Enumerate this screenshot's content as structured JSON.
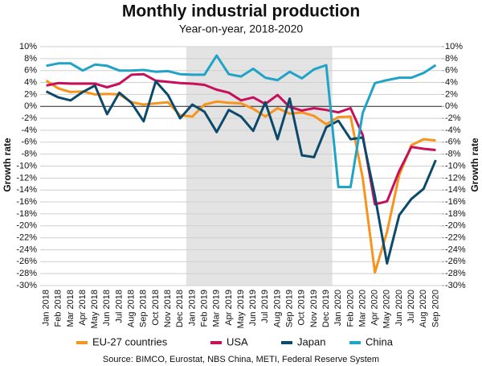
{
  "chart_data": {
    "type": "line",
    "title": "Monthly industrial production",
    "subtitle": "Year-on-year, 2018-2020",
    "y_label": "Growth rate",
    "y2_label": "Growth rate",
    "source": "Source: BIMCO, Eurostat, NBS China, METI, Federal Reserve System",
    "highlight": {
      "from": "Jan 2019",
      "to": "Dec 2019"
    },
    "categories": [
      "Jan 2018",
      "Feb 2018",
      "Mar 2018",
      "Apr 2018",
      "May 2018",
      "Jun 2018",
      "Jul 2018",
      "Aug 2018",
      "Sep 2018",
      "Oct 2018",
      "Nov 2018",
      "Dec 2018",
      "Jan 2019",
      "Feb 2019",
      "Mar 2019",
      "Apr 2019",
      "May 2019",
      "Jun 2019",
      "Jul 2019",
      "Aug 2019",
      "Sep 2019",
      "Oct 2019",
      "Nov 2019",
      "Dec 2019",
      "Jan 2020",
      "Feb 2020",
      "Mar 2020",
      "Apr 2020",
      "May 2020",
      "Jun 2020",
      "Jul 2020",
      "Aug 2020",
      "Sep 2020"
    ],
    "series": [
      {
        "name": "EU-27 countries",
        "color": "#f7941d",
        "values": [
          4.3,
          3.0,
          2.4,
          2.5,
          2.0,
          2.1,
          2.0,
          0.7,
          0.3,
          0.5,
          0.7,
          -1.5,
          -1.7,
          0.3,
          0.8,
          0.6,
          0.5,
          -0.4,
          -1.7,
          -0.3,
          -1.2,
          -1.0,
          -1.6,
          -3.0,
          -1.8,
          -1.7,
          -12,
          -27.8,
          -21,
          -11.5,
          -6.5,
          -5.5,
          -5.7
        ]
      },
      {
        "name": "USA",
        "color": "#c8105a",
        "values": [
          3.5,
          3.9,
          3.8,
          3.8,
          3.8,
          3.2,
          3.8,
          5.3,
          5.4,
          4.3,
          4.1,
          3.9,
          3.8,
          3.6,
          2.8,
          2.3,
          1.0,
          1.5,
          0.4,
          1.9,
          -0.1,
          -0.7,
          -0.3,
          -0.6,
          -1.0,
          -0.3,
          -4.8,
          -16.4,
          -15.9,
          -10.8,
          -6.8,
          -7.1,
          -7.3
        ]
      },
      {
        "name": "Japan",
        "color": "#0b4a6b",
        "values": [
          2.5,
          1.5,
          1.0,
          2.4,
          3.5,
          -1.3,
          2.3,
          0.6,
          -2.5,
          4.2,
          1.9,
          -2.0,
          0.3,
          -0.9,
          -4.3,
          -0.6,
          -1.7,
          -4.1,
          0.7,
          -5.5,
          1.3,
          -8.2,
          -8.5,
          -3.5,
          -2.4,
          -5.5,
          -5.2,
          -15,
          -26.3,
          -18.2,
          -15.5,
          -13.8,
          -9.0
        ]
      },
      {
        "name": "China",
        "color": "#1fa3c7",
        "values": [
          6.8,
          7.2,
          7.2,
          6.0,
          7.0,
          6.8,
          6.0,
          6.0,
          6.1,
          5.8,
          5.9,
          5.4,
          5.3,
          5.3,
          8.5,
          5.4,
          5.0,
          6.3,
          4.8,
          4.4,
          5.8,
          4.7,
          6.2,
          6.9,
          -13.5,
          -13.5,
          -1.1,
          3.9,
          4.4,
          4.8,
          4.8,
          5.6,
          6.9
        ]
      }
    ],
    "ylim": [
      -30,
      10
    ],
    "yticks": [
      {
        "value": 10,
        "label": "10%"
      },
      {
        "value": 8,
        "label": "8%"
      },
      {
        "value": 6,
        "label": "6%"
      },
      {
        "value": 4,
        "label": "4%"
      },
      {
        "value": 2,
        "label": "2%"
      },
      {
        "value": 0,
        "label": "0%"
      },
      {
        "value": -2,
        "label": "-2%"
      },
      {
        "value": -4,
        "label": "-4%"
      },
      {
        "value": -6,
        "label": "-6%"
      },
      {
        "value": -8,
        "label": "-8%"
      },
      {
        "value": -10,
        "label": "-10%"
      },
      {
        "value": -12,
        "label": "-12%"
      },
      {
        "value": -14,
        "label": "-14%"
      },
      {
        "value": -16,
        "label": "-16%"
      },
      {
        "value": -18,
        "label": "-18%"
      },
      {
        "value": -20,
        "label": "-20%"
      },
      {
        "value": -22,
        "label": "-22%"
      },
      {
        "value": -24,
        "label": "-24%"
      },
      {
        "value": -26,
        "label": "-26%"
      },
      {
        "value": -28,
        "label": "-28%"
      },
      {
        "value": -30,
        "label": "-30%"
      }
    ],
    "y2lim": [
      -30,
      10
    ],
    "y2ticks": [
      {
        "value": 10,
        "label": "10%"
      },
      {
        "value": 8,
        "label": "8%"
      },
      {
        "value": 6,
        "label": "6%"
      },
      {
        "value": 4,
        "label": "4%"
      },
      {
        "value": 2,
        "label": "2%"
      },
      {
        "value": 0,
        "label": "0%"
      },
      {
        "value": -2,
        "label": "-2%"
      },
      {
        "value": -4,
        "label": "-4%"
      },
      {
        "value": -6,
        "label": "-6%"
      },
      {
        "value": -8,
        "label": "-8%"
      },
      {
        "value": -10,
        "label": "-10%"
      },
      {
        "value": -12,
        "label": "-12%"
      },
      {
        "value": -14,
        "label": "-14%"
      },
      {
        "value": -16,
        "label": "-16%"
      },
      {
        "value": -18,
        "label": "-18%"
      },
      {
        "value": -20,
        "label": "-20%"
      },
      {
        "value": -22,
        "label": "-22%"
      },
      {
        "value": -24,
        "label": "-24%"
      },
      {
        "value": -26,
        "label": "-26%"
      },
      {
        "value": -28,
        "label": "-28%"
      },
      {
        "value": -30,
        "label": "-30%"
      }
    ],
    "grid": true
  }
}
